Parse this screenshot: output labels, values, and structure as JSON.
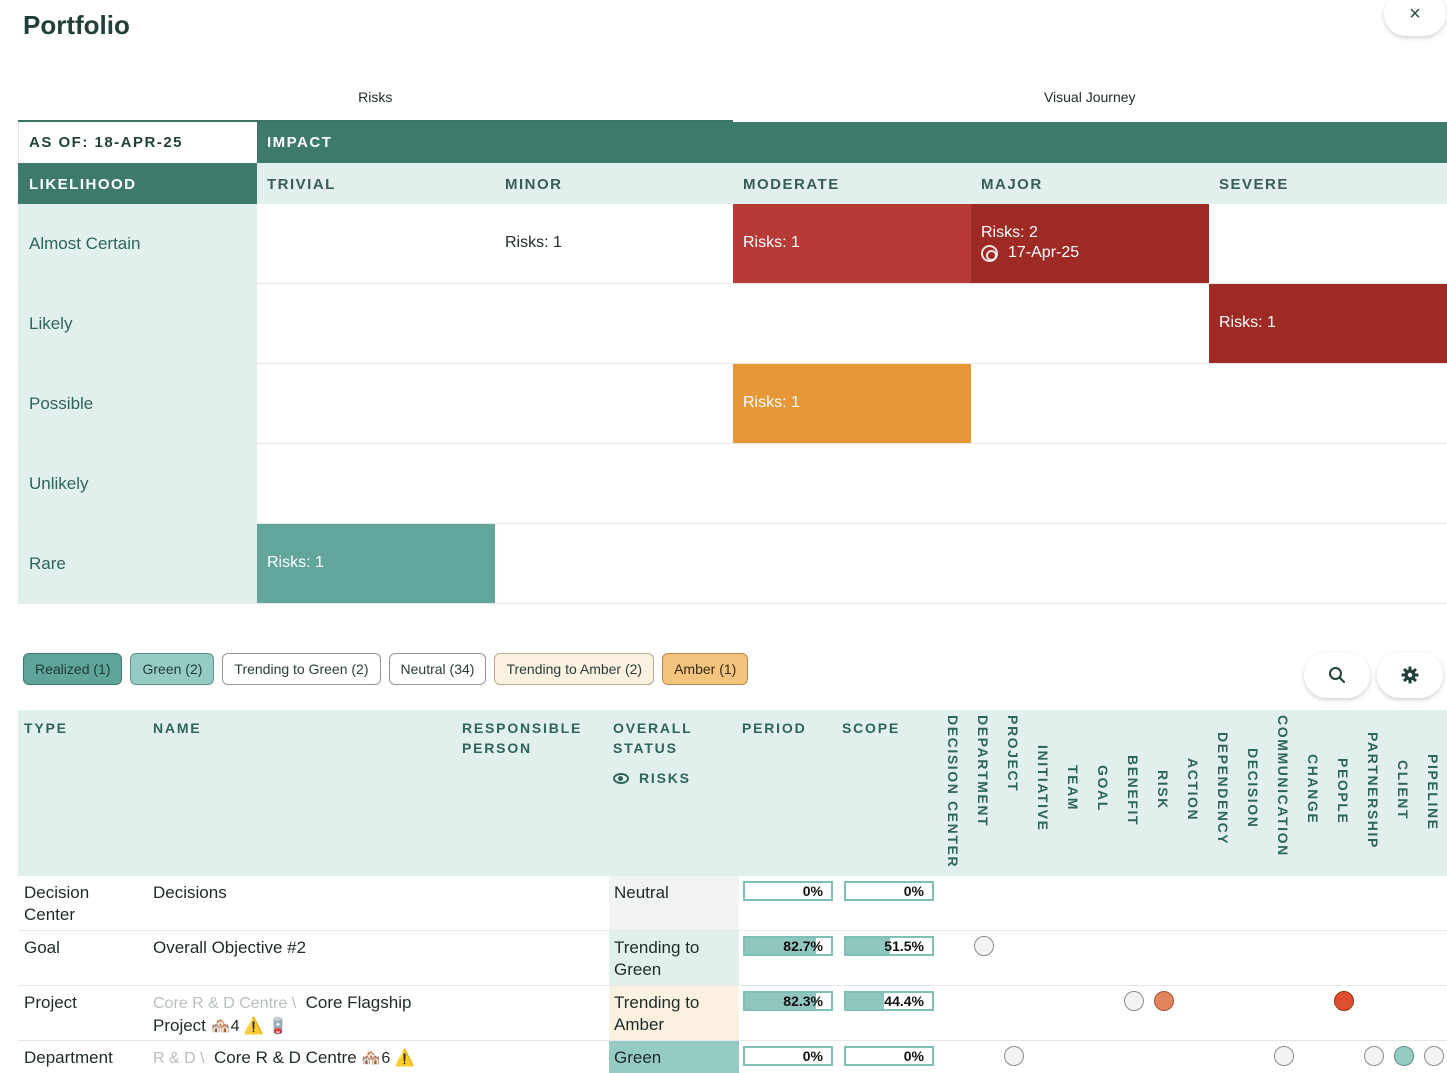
{
  "title": "Portfolio",
  "close_label": "×",
  "tabs": [
    {
      "label": "Risks",
      "active": true
    },
    {
      "label": "Visual Journey",
      "active": false
    }
  ],
  "matrix": {
    "as_of": "AS OF: 18-APR-25",
    "impact_label": "IMPACT",
    "likelihood_label": "LIKELIHOOD",
    "impact_levels": [
      "TRIVIAL",
      "MINOR",
      "MODERATE",
      "MAJOR",
      "SEVERE"
    ],
    "rows": [
      {
        "label": "Almost Certain",
        "cells": [
          "",
          "Risks: 1",
          "Risks: 1",
          "Risks: 2",
          ""
        ],
        "major_date": "17-Apr-25"
      },
      {
        "label": "Likely",
        "cells": [
          "",
          "",
          "",
          "",
          "Risks: 1"
        ]
      },
      {
        "label": "Possible",
        "cells": [
          "",
          "",
          "Risks: 1",
          "",
          ""
        ]
      },
      {
        "label": "Unlikely",
        "cells": [
          "",
          "",
          "",
          "",
          ""
        ]
      },
      {
        "label": "Rare",
        "cells": [
          "Risks: 1",
          "",
          "",
          "",
          ""
        ]
      }
    ],
    "colors": {
      "moderate": "#b63a35",
      "major": "#9e2a26",
      "orange": "#e79738",
      "green": "#62a59b"
    }
  },
  "filters": [
    {
      "label": "Realized (1)"
    },
    {
      "label": "Green (2)"
    },
    {
      "label": "Trending to Green (2)"
    },
    {
      "label": "Neutral (34)"
    },
    {
      "label": "Trending to Amber (2)"
    },
    {
      "label": "Amber (1)"
    }
  ],
  "toolbar_icons": {
    "search": "search-icon",
    "settings": "gear-icon"
  },
  "table": {
    "headers": {
      "type": "TYPE",
      "name": "NAME",
      "responsible_line1": "RESPONSIBLE",
      "responsible_line2": "PERSON",
      "status_line1": "OVERALL",
      "status_line2": "STATUS",
      "risks": "RISKS",
      "period": "PERIOD",
      "scope": "SCOPE"
    },
    "dimension_columns": [
      "DECISION CENTER",
      "DEPARTMENT",
      "PROJECT",
      "INITIATIVE",
      "TEAM",
      "GOAL",
      "BENEFIT",
      "RISK",
      "ACTION",
      "DEPENDENCY",
      "DECISION",
      "COMMUNICATION",
      "CHANGE",
      "PEOPLE",
      "PARTNERSHIP",
      "CLIENT",
      "PIPELINE"
    ],
    "rows": [
      {
        "type": "Decision Center",
        "crumb": "",
        "name": "Decisions",
        "extras": "",
        "status": "Neutral",
        "period": "0%",
        "period_value": 0,
        "scope": "0%",
        "scope_value": 0
      },
      {
        "type": "Goal",
        "crumb": "",
        "name": "Overall Objective #2",
        "extras": "",
        "status": "Trending to Green",
        "period": "82.7%",
        "period_value": 82.7,
        "scope": "51.5%",
        "scope_value": 51.5
      },
      {
        "type": "Project",
        "crumb": "Core R & D Centre \\",
        "name": "Core Flagship Project",
        "extras": "🏘️4 ⚠️ 🪫",
        "status": "Trending to Amber",
        "period": "82.3%",
        "period_value": 82.3,
        "scope": "44.4%",
        "scope_value": 44.4
      },
      {
        "type": "Department",
        "crumb": "R & D \\",
        "name": "Core R & D Centre",
        "extras": "🏘️6 ⚠️",
        "status": "Green",
        "period": "0%",
        "period_value": 0,
        "scope": "0%",
        "scope_value": 0
      }
    ]
  }
}
